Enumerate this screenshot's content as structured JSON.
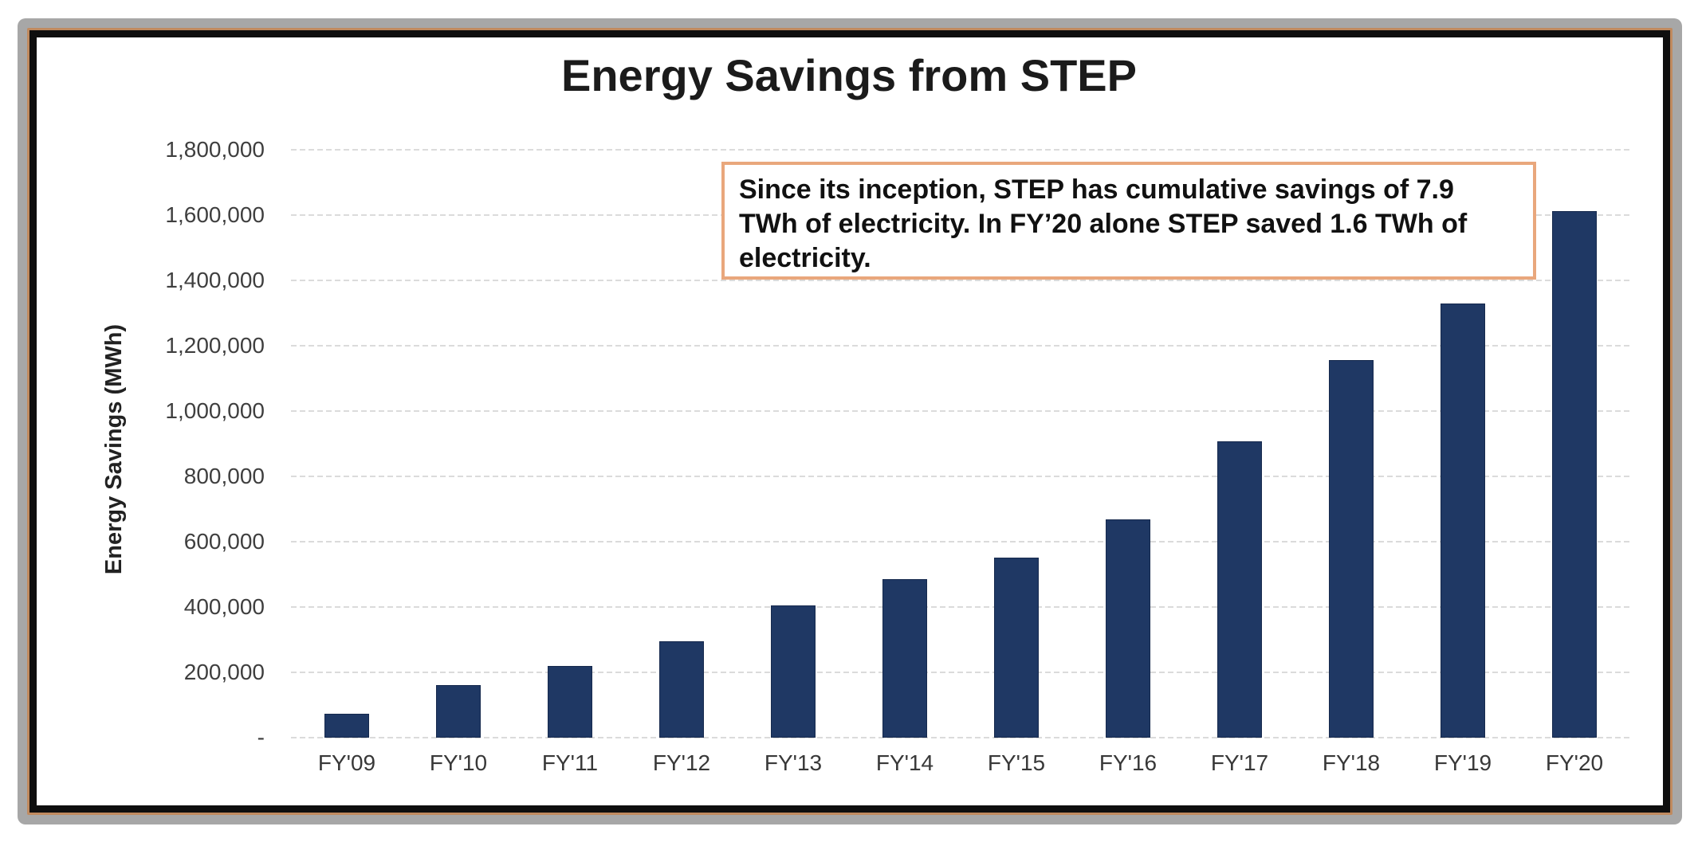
{
  "chart_data": {
    "type": "bar",
    "title": "Energy Savings from STEP",
    "ylabel": "Energy Savings (MWh)",
    "xlabel": "",
    "categories": [
      "FY'09",
      "FY'10",
      "FY'11",
      "FY'12",
      "FY'13",
      "FY'14",
      "FY'15",
      "FY'16",
      "FY'17",
      "FY'18",
      "FY'19",
      "FY'20"
    ],
    "values": [
      72000,
      160000,
      220000,
      295000,
      405000,
      485000,
      552000,
      668000,
      908000,
      1155000,
      1330000,
      1612000
    ],
    "ylim": [
      0,
      1800000
    ],
    "ytick_step": 200000,
    "ytick_labels": [
      "-",
      "200,000",
      "400,000",
      "600,000",
      "800,000",
      "1,000,000",
      "1,200,000",
      "1,400,000",
      "1,600,000",
      "1,800,000"
    ],
    "grid": true,
    "legend": false,
    "annotation": {
      "text": "Since its inception, STEP has cumulative savings of 7.9 TWh of electricity. In FY’20 alone STEP saved 1.6 TWh of electricity.",
      "border_color": "#E9A77C"
    },
    "colors": {
      "bar": "#1F3864",
      "bar_edge": "#16294D",
      "gridline": "#DBDBDB",
      "tick_text": "#3F3F3F",
      "title_text": "#1B1B1B"
    }
  },
  "frame": {
    "outer_color": "#A7A7A7",
    "accent_color": "#C08A5F",
    "inner_color": "#0E0E0E",
    "background": "#FFFFFF"
  }
}
